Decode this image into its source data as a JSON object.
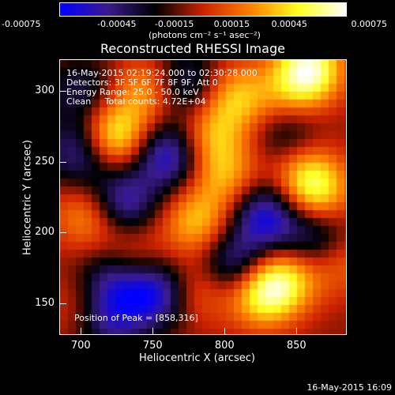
{
  "chart_data": {
    "type": "heatmap",
    "title": "Reconstructed RHESSI Image",
    "colorbar": {
      "ticks": [
        "-0.00075",
        "-0.00045",
        "-0.00015",
        "0.00015",
        "0.00045",
        "0.00075"
      ],
      "range": [
        -0.00075,
        0.00075
      ],
      "label": "(photons cm⁻² s⁻¹ asec⁻²)",
      "colors": [
        "#0000ff",
        "#3a1b8c",
        "#000000",
        "#cc2200",
        "#ff8000",
        "#ffff20",
        "#ffffff"
      ]
    },
    "xlabel": "Heliocentric X (arcsec)",
    "ylabel": "Heliocentric Y (arcsec)",
    "xlim": [
      685,
      885
    ],
    "ylim": [
      128,
      322
    ],
    "xticks": [
      "700",
      "750",
      "800",
      "850"
    ],
    "yticks": [
      "150",
      "200",
      "250",
      "300"
    ],
    "info_lines": [
      "16-May-2015 02:19:24.000 to 02:30:28.000",
      "Detectors: 3F 5F 6F 7F 8F 9F, Att 0",
      "Energy Range: 25.0 - 50.0 keV",
      "Clean     Total counts: 4.72E+04"
    ],
    "peak_label": "Position of Peak = [858,316]",
    "grid": false,
    "sources": [
      {
        "x": 858,
        "y": 316,
        "amp": 0.00075
      },
      {
        "x": 722,
        "y": 268,
        "amp": 0.00068
      },
      {
        "x": 745,
        "y": 300,
        "amp": 0.0004
      },
      {
        "x": 808,
        "y": 296,
        "amp": 0.00045
      },
      {
        "x": 790,
        "y": 268,
        "amp": 0.0004
      },
      {
        "x": 800,
        "y": 240,
        "amp": 0.00038
      },
      {
        "x": 780,
        "y": 208,
        "amp": 0.00045
      },
      {
        "x": 862,
        "y": 230,
        "amp": 0.00062
      },
      {
        "x": 852,
        "y": 252,
        "amp": 0.0003
      },
      {
        "x": 705,
        "y": 212,
        "amp": 0.0004
      },
      {
        "x": 825,
        "y": 158,
        "amp": 0.0006
      },
      {
        "x": 842,
        "y": 168,
        "amp": 0.00045
      },
      {
        "x": 735,
        "y": 185,
        "amp": 0.00025
      },
      {
        "x": 700,
        "y": 150,
        "amp": 0.0002
      },
      {
        "x": 780,
        "y": 160,
        "amp": 0.0003
      },
      {
        "x": 845,
        "y": 295,
        "amp": 0.00025
      },
      {
        "x": 880,
        "y": 180,
        "amp": 0.00025
      }
    ],
    "sinks": [
      {
        "x": 760,
        "y": 255,
        "amp": 0.0006
      },
      {
        "x": 728,
        "y": 222,
        "amp": 0.00055
      },
      {
        "x": 700,
        "y": 258,
        "amp": 0.0005
      },
      {
        "x": 828,
        "y": 212,
        "amp": 0.0006
      },
      {
        "x": 806,
        "y": 178,
        "amp": 0.0005
      },
      {
        "x": 862,
        "y": 198,
        "amp": 0.0004
      },
      {
        "x": 752,
        "y": 158,
        "amp": 0.0006
      },
      {
        "x": 720,
        "y": 168,
        "amp": 0.0004
      },
      {
        "x": 845,
        "y": 268,
        "amp": 0.0004
      },
      {
        "x": 772,
        "y": 305,
        "amp": 0.0004
      },
      {
        "x": 700,
        "y": 300,
        "amp": 0.0003
      },
      {
        "x": 720,
        "y": 140,
        "amp": 0.00045
      }
    ]
  },
  "footer": {
    "timestamp": "16-May-2015 16:09"
  }
}
